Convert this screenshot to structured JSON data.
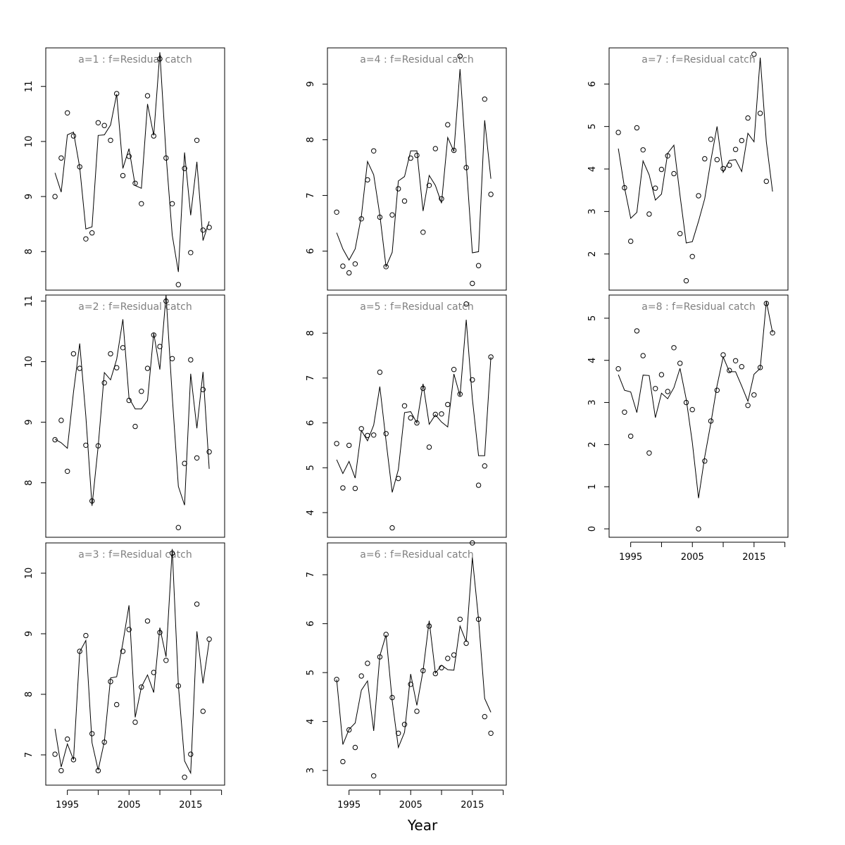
{
  "xlabel": "Year",
  "chart_data": [
    {
      "type": "line",
      "title": "a=1  :  f=Residual catch",
      "ylim": [
        7.3,
        11.7
      ],
      "yticks": [
        8,
        9,
        10,
        11
      ],
      "xticks": [
        1995,
        2005,
        2015
      ],
      "xtick_labels_shown": false,
      "x": [
        1993,
        1994,
        1995,
        1996,
        1997,
        1998,
        1999,
        2000,
        2001,
        2002,
        2003,
        2004,
        2005,
        2006,
        2007,
        2008,
        2009,
        2010,
        2011,
        2012,
        2013,
        2014,
        2015,
        2016,
        2017,
        2018
      ],
      "series": [
        {
          "kind": "line",
          "values": [
            9.43,
            9.08,
            10.12,
            10.17,
            9.53,
            8.41,
            8.45,
            10.11,
            10.12,
            10.3,
            10.86,
            9.51,
            9.87,
            9.2,
            9.15,
            10.68,
            10.11,
            11.62,
            9.76,
            8.3,
            7.63,
            9.8,
            8.66,
            9.63,
            8.2,
            8.55
          ]
        },
        {
          "kind": "points",
          "values": [
            9.0,
            9.7,
            10.52,
            10.1,
            9.54,
            8.23,
            8.34,
            10.34,
            10.29,
            10.02,
            10.87,
            9.38,
            9.73,
            9.24,
            8.87,
            10.83,
            10.1,
            11.5,
            9.7,
            8.87,
            7.4,
            9.51,
            7.98,
            10.02,
            8.39,
            8.44
          ]
        }
      ]
    },
    {
      "type": "line",
      "title": "a=2  :  f=Residual catch",
      "ylim": [
        7.1,
        11.1
      ],
      "yticks": [
        8,
        9,
        10,
        11
      ],
      "xticks": [
        1995,
        2005,
        2015
      ],
      "xtick_labels_shown": false,
      "x": [
        1993,
        1994,
        1995,
        1996,
        1997,
        1998,
        1999,
        2000,
        2001,
        2002,
        2003,
        2004,
        2005,
        2006,
        2007,
        2008,
        2009,
        2010,
        2011,
        2012,
        2013,
        2014,
        2015,
        2016,
        2017,
        2018
      ],
      "series": [
        {
          "kind": "line",
          "values": [
            8.72,
            8.66,
            8.57,
            9.5,
            10.3,
            9.1,
            7.62,
            8.6,
            9.82,
            9.7,
            10.04,
            10.7,
            9.4,
            9.22,
            9.22,
            9.36,
            10.47,
            9.87,
            11.1,
            9.43,
            7.94,
            7.63,
            9.8,
            8.9,
            9.83,
            8.23
          ]
        },
        {
          "kind": "points",
          "values": [
            8.71,
            9.03,
            8.19,
            10.13,
            9.89,
            8.62,
            7.7,
            8.61,
            9.65,
            10.13,
            9.9,
            10.23,
            9.36,
            8.93,
            9.51,
            9.89,
            10.44,
            10.25,
            11.0,
            10.05,
            7.26,
            8.32,
            10.03,
            8.41,
            9.54,
            8.51
          ]
        }
      ]
    },
    {
      "type": "line",
      "title": "a=3  :  f=Residual catch",
      "ylim": [
        6.5,
        10.5
      ],
      "yticks": [
        7,
        8,
        9,
        10
      ],
      "xticks": [
        1995,
        2005,
        2015
      ],
      "xtick_labels_shown": true,
      "x": [
        1993,
        1994,
        1995,
        1996,
        1997,
        1998,
        1999,
        2000,
        2001,
        2002,
        2003,
        2004,
        2005,
        2006,
        2007,
        2008,
        2009,
        2010,
        2011,
        2012,
        2013,
        2014,
        2015,
        2016,
        2017,
        2018
      ],
      "series": [
        {
          "kind": "line",
          "values": [
            7.43,
            6.8,
            7.18,
            6.92,
            8.7,
            8.89,
            7.2,
            6.75,
            7.22,
            8.27,
            8.29,
            8.85,
            9.47,
            7.62,
            8.12,
            8.32,
            8.03,
            9.1,
            8.62,
            10.4,
            8.15,
            6.9,
            6.7,
            9.04,
            8.18,
            8.88
          ]
        },
        {
          "kind": "points",
          "values": [
            7.01,
            6.74,
            7.26,
            6.92,
            8.71,
            8.97,
            7.35,
            6.74,
            7.21,
            8.21,
            7.83,
            8.71,
            9.07,
            7.54,
            8.12,
            9.21,
            8.36,
            9.02,
            8.56,
            10.33,
            8.14,
            6.63,
            7.01,
            9.49,
            7.72,
            8.91
          ]
        }
      ]
    },
    {
      "type": "line",
      "title": "a=4  :  f=Residual catch",
      "ylim": [
        5.3,
        9.65
      ],
      "yticks": [
        6,
        7,
        8,
        9
      ],
      "xticks": [
        1995,
        2005,
        2015
      ],
      "xtick_labels_shown": false,
      "x": [
        1993,
        1994,
        1995,
        1996,
        1997,
        1998,
        1999,
        2000,
        2001,
        2002,
        2003,
        2004,
        2005,
        2006,
        2007,
        2008,
        2009,
        2010,
        2011,
        2012,
        2013,
        2014,
        2015,
        2016,
        2017,
        2018
      ],
      "series": [
        {
          "kind": "line",
          "values": [
            6.33,
            6.04,
            5.84,
            6.04,
            6.63,
            7.61,
            7.37,
            6.65,
            5.72,
            5.98,
            7.26,
            7.34,
            7.8,
            7.8,
            6.72,
            7.36,
            7.18,
            6.86,
            8.04,
            7.79,
            9.27,
            7.57,
            5.97,
            5.99,
            8.35,
            7.3
          ]
        },
        {
          "kind": "points",
          "values": [
            6.7,
            5.73,
            5.61,
            5.77,
            6.58,
            7.28,
            7.8,
            6.61,
            5.72,
            6.65,
            7.12,
            6.9,
            7.67,
            7.72,
            6.34,
            7.18,
            7.84,
            6.94,
            8.27,
            7.81,
            9.5,
            7.5,
            5.42,
            5.74,
            8.73,
            7.02
          ]
        }
      ]
    },
    {
      "type": "line",
      "title": "a=5  :  f=Residual catch",
      "ylim": [
        3.45,
        8.85
      ],
      "yticks": [
        4,
        5,
        6,
        7,
        8
      ],
      "xticks": [
        1995,
        2005,
        2015
      ],
      "xtick_labels_shown": false,
      "x": [
        1993,
        1994,
        1995,
        1996,
        1997,
        1998,
        1999,
        2000,
        2001,
        2002,
        2003,
        2004,
        2005,
        2006,
        2007,
        2008,
        2009,
        2010,
        2011,
        2012,
        2013,
        2014,
        2015,
        2016,
        2017,
        2018
      ],
      "series": [
        {
          "kind": "line",
          "values": [
            5.18,
            4.87,
            5.14,
            4.77,
            5.83,
            5.6,
            5.95,
            6.81,
            5.6,
            4.45,
            4.96,
            6.23,
            6.25,
            6.0,
            6.87,
            5.97,
            6.18,
            6.02,
            5.91,
            7.09,
            6.6,
            8.3,
            6.54,
            5.27,
            5.27,
            7.47
          ]
        },
        {
          "kind": "points",
          "values": [
            5.54,
            4.55,
            5.5,
            4.54,
            5.87,
            5.72,
            5.73,
            7.13,
            5.76,
            3.66,
            4.76,
            6.38,
            6.11,
            6.0,
            6.77,
            5.46,
            6.19,
            6.2,
            6.41,
            7.19,
            6.64,
            8.65,
            6.96,
            4.61,
            5.04,
            7.47
          ]
        }
      ]
    },
    {
      "type": "line",
      "title": "a=6  :  f=Residual catch",
      "ylim": [
        2.7,
        7.65
      ],
      "yticks": [
        3,
        4,
        5,
        6,
        7
      ],
      "xticks": [
        1995,
        2005,
        2015
      ],
      "xtick_labels_shown": true,
      "x": [
        1993,
        1994,
        1995,
        1996,
        1997,
        1998,
        1999,
        2000,
        2001,
        2002,
        2003,
        2004,
        2005,
        2006,
        2007,
        2008,
        2009,
        2010,
        2011,
        2012,
        2013,
        2014,
        2015,
        2016,
        2017,
        2018
      ],
      "series": [
        {
          "kind": "line",
          "values": [
            4.86,
            3.53,
            3.84,
            3.97,
            4.64,
            4.83,
            3.81,
            5.34,
            5.77,
            4.42,
            3.47,
            3.78,
            4.97,
            4.33,
            5.04,
            6.06,
            4.99,
            5.15,
            5.06,
            5.05,
            5.95,
            5.63,
            7.35,
            6.09,
            4.47,
            4.19
          ]
        },
        {
          "kind": "points",
          "values": [
            4.86,
            3.18,
            3.83,
            3.47,
            4.93,
            5.19,
            2.89,
            5.32,
            5.78,
            4.49,
            3.76,
            3.94,
            4.76,
            4.21,
            5.04,
            5.95,
            4.98,
            5.1,
            5.29,
            5.36,
            6.09,
            5.6,
            7.65,
            6.09,
            4.1,
            3.76
          ]
        }
      ]
    },
    {
      "type": "line",
      "title": "a=7  :  f=Residual catch",
      "ylim": [
        1.15,
        6.85
      ],
      "yticks": [
        2,
        3,
        4,
        5,
        6
      ],
      "xticks": [
        1995,
        2005,
        2015
      ],
      "xtick_labels_shown": false,
      "x": [
        1993,
        1994,
        1995,
        1996,
        1997,
        1998,
        1999,
        2000,
        2001,
        2002,
        2003,
        2004,
        2005,
        2006,
        2007,
        2008,
        2009,
        2010,
        2011,
        2012,
        2013,
        2014,
        2015,
        2016,
        2017,
        2018
      ],
      "series": [
        {
          "kind": "line",
          "values": [
            4.48,
            3.56,
            2.84,
            2.98,
            4.19,
            3.86,
            3.27,
            3.41,
            4.37,
            4.56,
            3.38,
            2.26,
            2.29,
            2.77,
            3.3,
            4.2,
            5.0,
            3.92,
            4.2,
            4.22,
            3.94,
            4.84,
            4.64,
            6.62,
            4.64,
            3.47
          ]
        },
        {
          "kind": "points",
          "values": [
            4.86,
            3.56,
            2.3,
            4.97,
            4.45,
            2.94,
            3.55,
            3.99,
            4.31,
            3.89,
            2.48,
            1.37,
            1.94,
            3.37,
            4.24,
            4.7,
            4.22,
            4.01,
            4.09,
            4.46,
            4.67,
            5.2,
            6.7,
            5.31,
            3.71,
            null
          ]
        }
      ]
    },
    {
      "type": "line",
      "title": "a=8  :  f=Residual catch",
      "ylim": [
        -0.2,
        5.55
      ],
      "yticks": [
        0,
        1,
        2,
        3,
        4,
        5
      ],
      "xticks": [
        1995,
        2005,
        2015
      ],
      "xtick_labels_shown": true,
      "x": [
        1993,
        1994,
        1995,
        1996,
        1997,
        1998,
        1999,
        2000,
        2001,
        2002,
        2003,
        2004,
        2005,
        2006,
        2007,
        2008,
        2009,
        2010,
        2011,
        2012,
        2013,
        2014,
        2015,
        2016,
        2017,
        2018
      ],
      "series": [
        {
          "kind": "line",
          "values": [
            3.66,
            3.29,
            3.25,
            2.76,
            3.65,
            3.64,
            2.64,
            3.22,
            3.09,
            3.35,
            3.81,
            3.08,
            2.05,
            0.73,
            1.71,
            2.51,
            3.4,
            4.08,
            3.73,
            3.73,
            3.39,
            3.03,
            3.67,
            3.81,
            5.4,
            4.66
          ]
        },
        {
          "kind": "points",
          "values": [
            3.8,
            2.77,
            2.2,
            4.7,
            4.11,
            1.8,
            3.33,
            3.66,
            3.26,
            4.3,
            3.93,
            3.0,
            2.83,
            0.0,
            1.61,
            2.56,
            3.29,
            4.13,
            3.76,
            3.99,
            3.85,
            2.93,
            3.18,
            3.83,
            5.35,
            4.65
          ]
        }
      ]
    }
  ]
}
